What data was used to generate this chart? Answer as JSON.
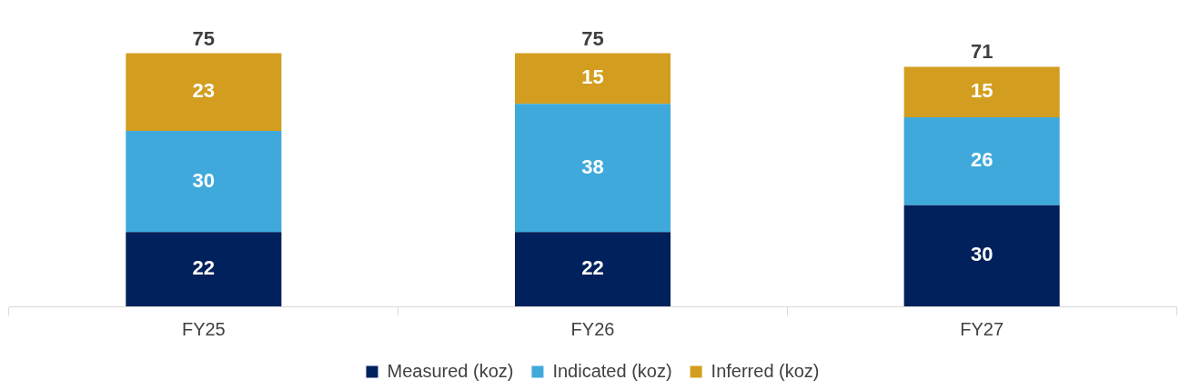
{
  "chart_data": {
    "type": "bar",
    "stacked": true,
    "data_labels": true,
    "legend": "bottom",
    "categories": [
      "FY25",
      "FY26",
      "FY27"
    ],
    "series": [
      {
        "name": "Measured (koz)",
        "color": "#00215b",
        "values": [
          22,
          22,
          30
        ]
      },
      {
        "name": "Indicated (koz)",
        "color": "#3fa9db",
        "values": [
          30,
          38,
          26
        ]
      },
      {
        "name": "Inferred (koz)",
        "color": "#d39e1f",
        "values": [
          23,
          15,
          15
        ]
      }
    ],
    "totals": [
      "75",
      "75",
      "71"
    ]
  }
}
